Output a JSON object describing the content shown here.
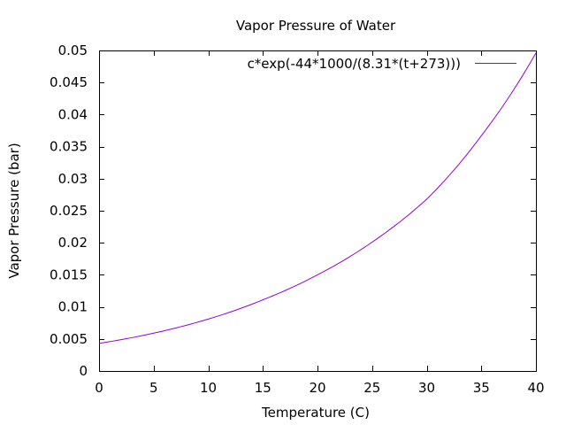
{
  "chart_data": {
    "type": "line",
    "title": "Vapor Pressure of Water",
    "xlabel": "Temperature (C)",
    "ylabel": "Vapor Pressure (bar)",
    "xlim": [
      0,
      40
    ],
    "ylim": [
      0,
      0.05
    ],
    "x_ticks": [
      0,
      5,
      10,
      15,
      20,
      25,
      30,
      35,
      40
    ],
    "x_tick_labels": [
      "0",
      "5",
      "10",
      "15",
      "20",
      "25",
      "30",
      "35",
      "40"
    ],
    "y_ticks": [
      0,
      0.005,
      0.01,
      0.015,
      0.02,
      0.025,
      0.03,
      0.035,
      0.04,
      0.045,
      0.05
    ],
    "y_tick_labels": [
      "0",
      "0.005",
      "0.01",
      "0.015",
      "0.02",
      "0.025",
      "0.03",
      "0.035",
      "0.04",
      "0.045",
      "0.05"
    ],
    "grid": false,
    "legend_position": "top-right",
    "series": [
      {
        "name": "c*exp(-44*1000/(8.31*(t+273)))",
        "color": "#9400d3",
        "x": [
          0,
          5,
          10,
          15,
          20,
          25,
          30,
          35,
          40
        ],
        "y": [
          0.0043,
          0.0059,
          0.0081,
          0.0111,
          0.015,
          0.0201,
          0.0268,
          0.0367,
          0.0496
        ]
      }
    ]
  }
}
